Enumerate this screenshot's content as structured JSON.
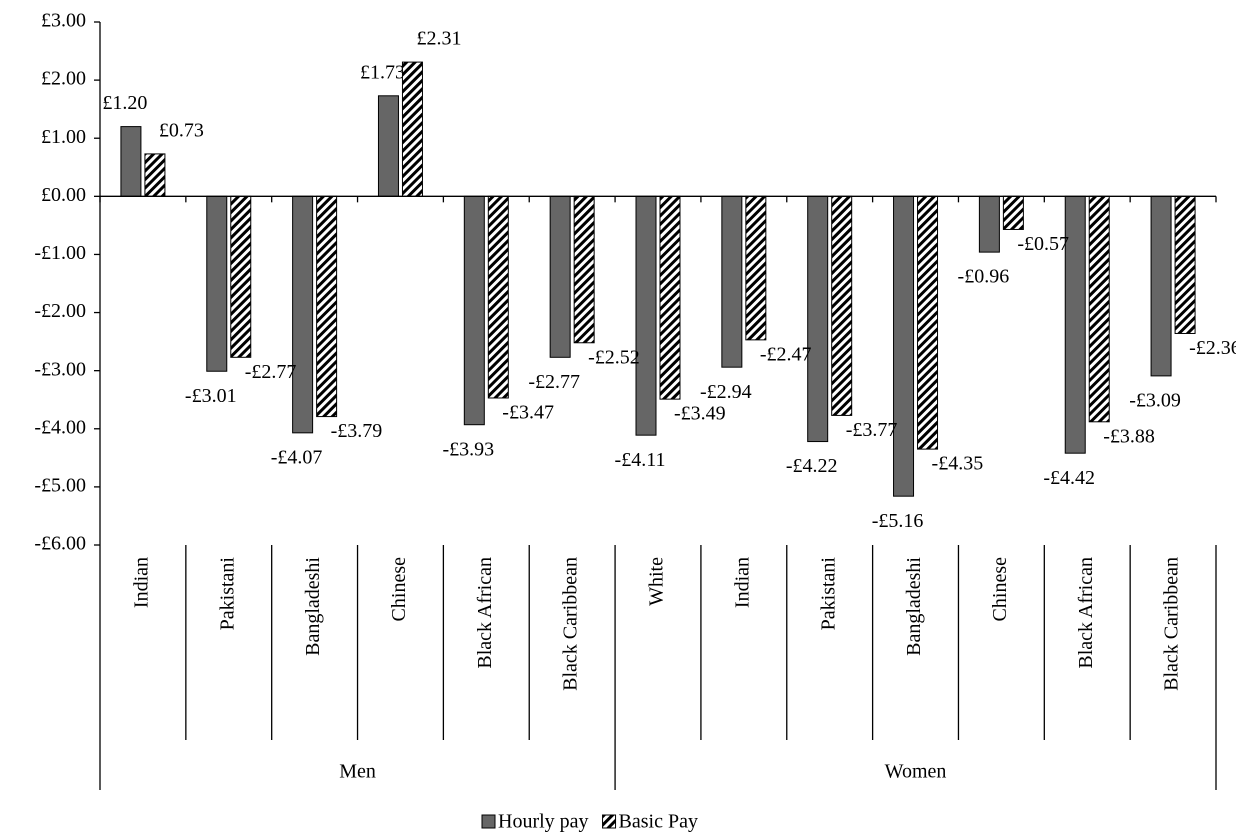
{
  "chart_data": {
    "type": "bar",
    "groups": [
      {
        "name": "Men",
        "categories": [
          "Indian",
          "Pakistani",
          "Bangladeshi",
          "Chinese",
          "Black African",
          "Black Caribbean"
        ]
      },
      {
        "name": "Women",
        "categories": [
          "White",
          "Indian",
          "Pakistani",
          "Bangladeshi",
          "Chinese",
          "Black African",
          "Black Caribbean"
        ]
      }
    ],
    "series": [
      {
        "name": "Hourly pay",
        "color": "#666666",
        "values": [
          1.2,
          -3.01,
          -4.07,
          1.73,
          -3.93,
          -2.77,
          -4.11,
          -2.94,
          -4.22,
          -5.16,
          -0.96,
          -4.42,
          -3.09
        ],
        "value_labels": [
          "£1.20",
          "-£3.01",
          "-£4.07",
          "£1.73",
          "-£3.93",
          "-£2.77",
          "-£4.11",
          "-£2.94",
          "-£4.22",
          "-£5.16",
          "-£0.96",
          "-£4.42",
          "-£3.09"
        ]
      },
      {
        "name": "Basic Pay",
        "color": "#000000",
        "pattern": "diagonal-hatch",
        "values": [
          0.73,
          -2.77,
          -3.79,
          2.31,
          -3.47,
          -2.52,
          -3.49,
          -2.47,
          -3.77,
          -4.35,
          -0.57,
          -3.88,
          -2.36
        ],
        "value_labels": [
          "£0.73",
          "-£2.77",
          "-£3.79",
          "£2.31",
          "-£3.47",
          "-£2.52",
          "-£3.49",
          "-£2.47",
          "-£3.77",
          "-£4.35",
          "-£0.57",
          "-£3.88",
          "-£2.36"
        ]
      }
    ],
    "ylim": [
      -6,
      3
    ],
    "yticks": [
      {
        "value": 3,
        "label": "£3.00"
      },
      {
        "value": 2,
        "label": "£2.00"
      },
      {
        "value": 1,
        "label": "£1.00"
      },
      {
        "value": 0,
        "label": "£0.00"
      },
      {
        "value": -1,
        "label": "-£1.00"
      },
      {
        "value": -2,
        "label": "-£2.00"
      },
      {
        "value": -3,
        "label": "-£3.00"
      },
      {
        "value": -4,
        "label": "-£4.00"
      },
      {
        "value": -5,
        "label": "-£5.00"
      },
      {
        "value": -6,
        "label": "-£6.00"
      }
    ],
    "grid": false,
    "legend": "bottom"
  }
}
